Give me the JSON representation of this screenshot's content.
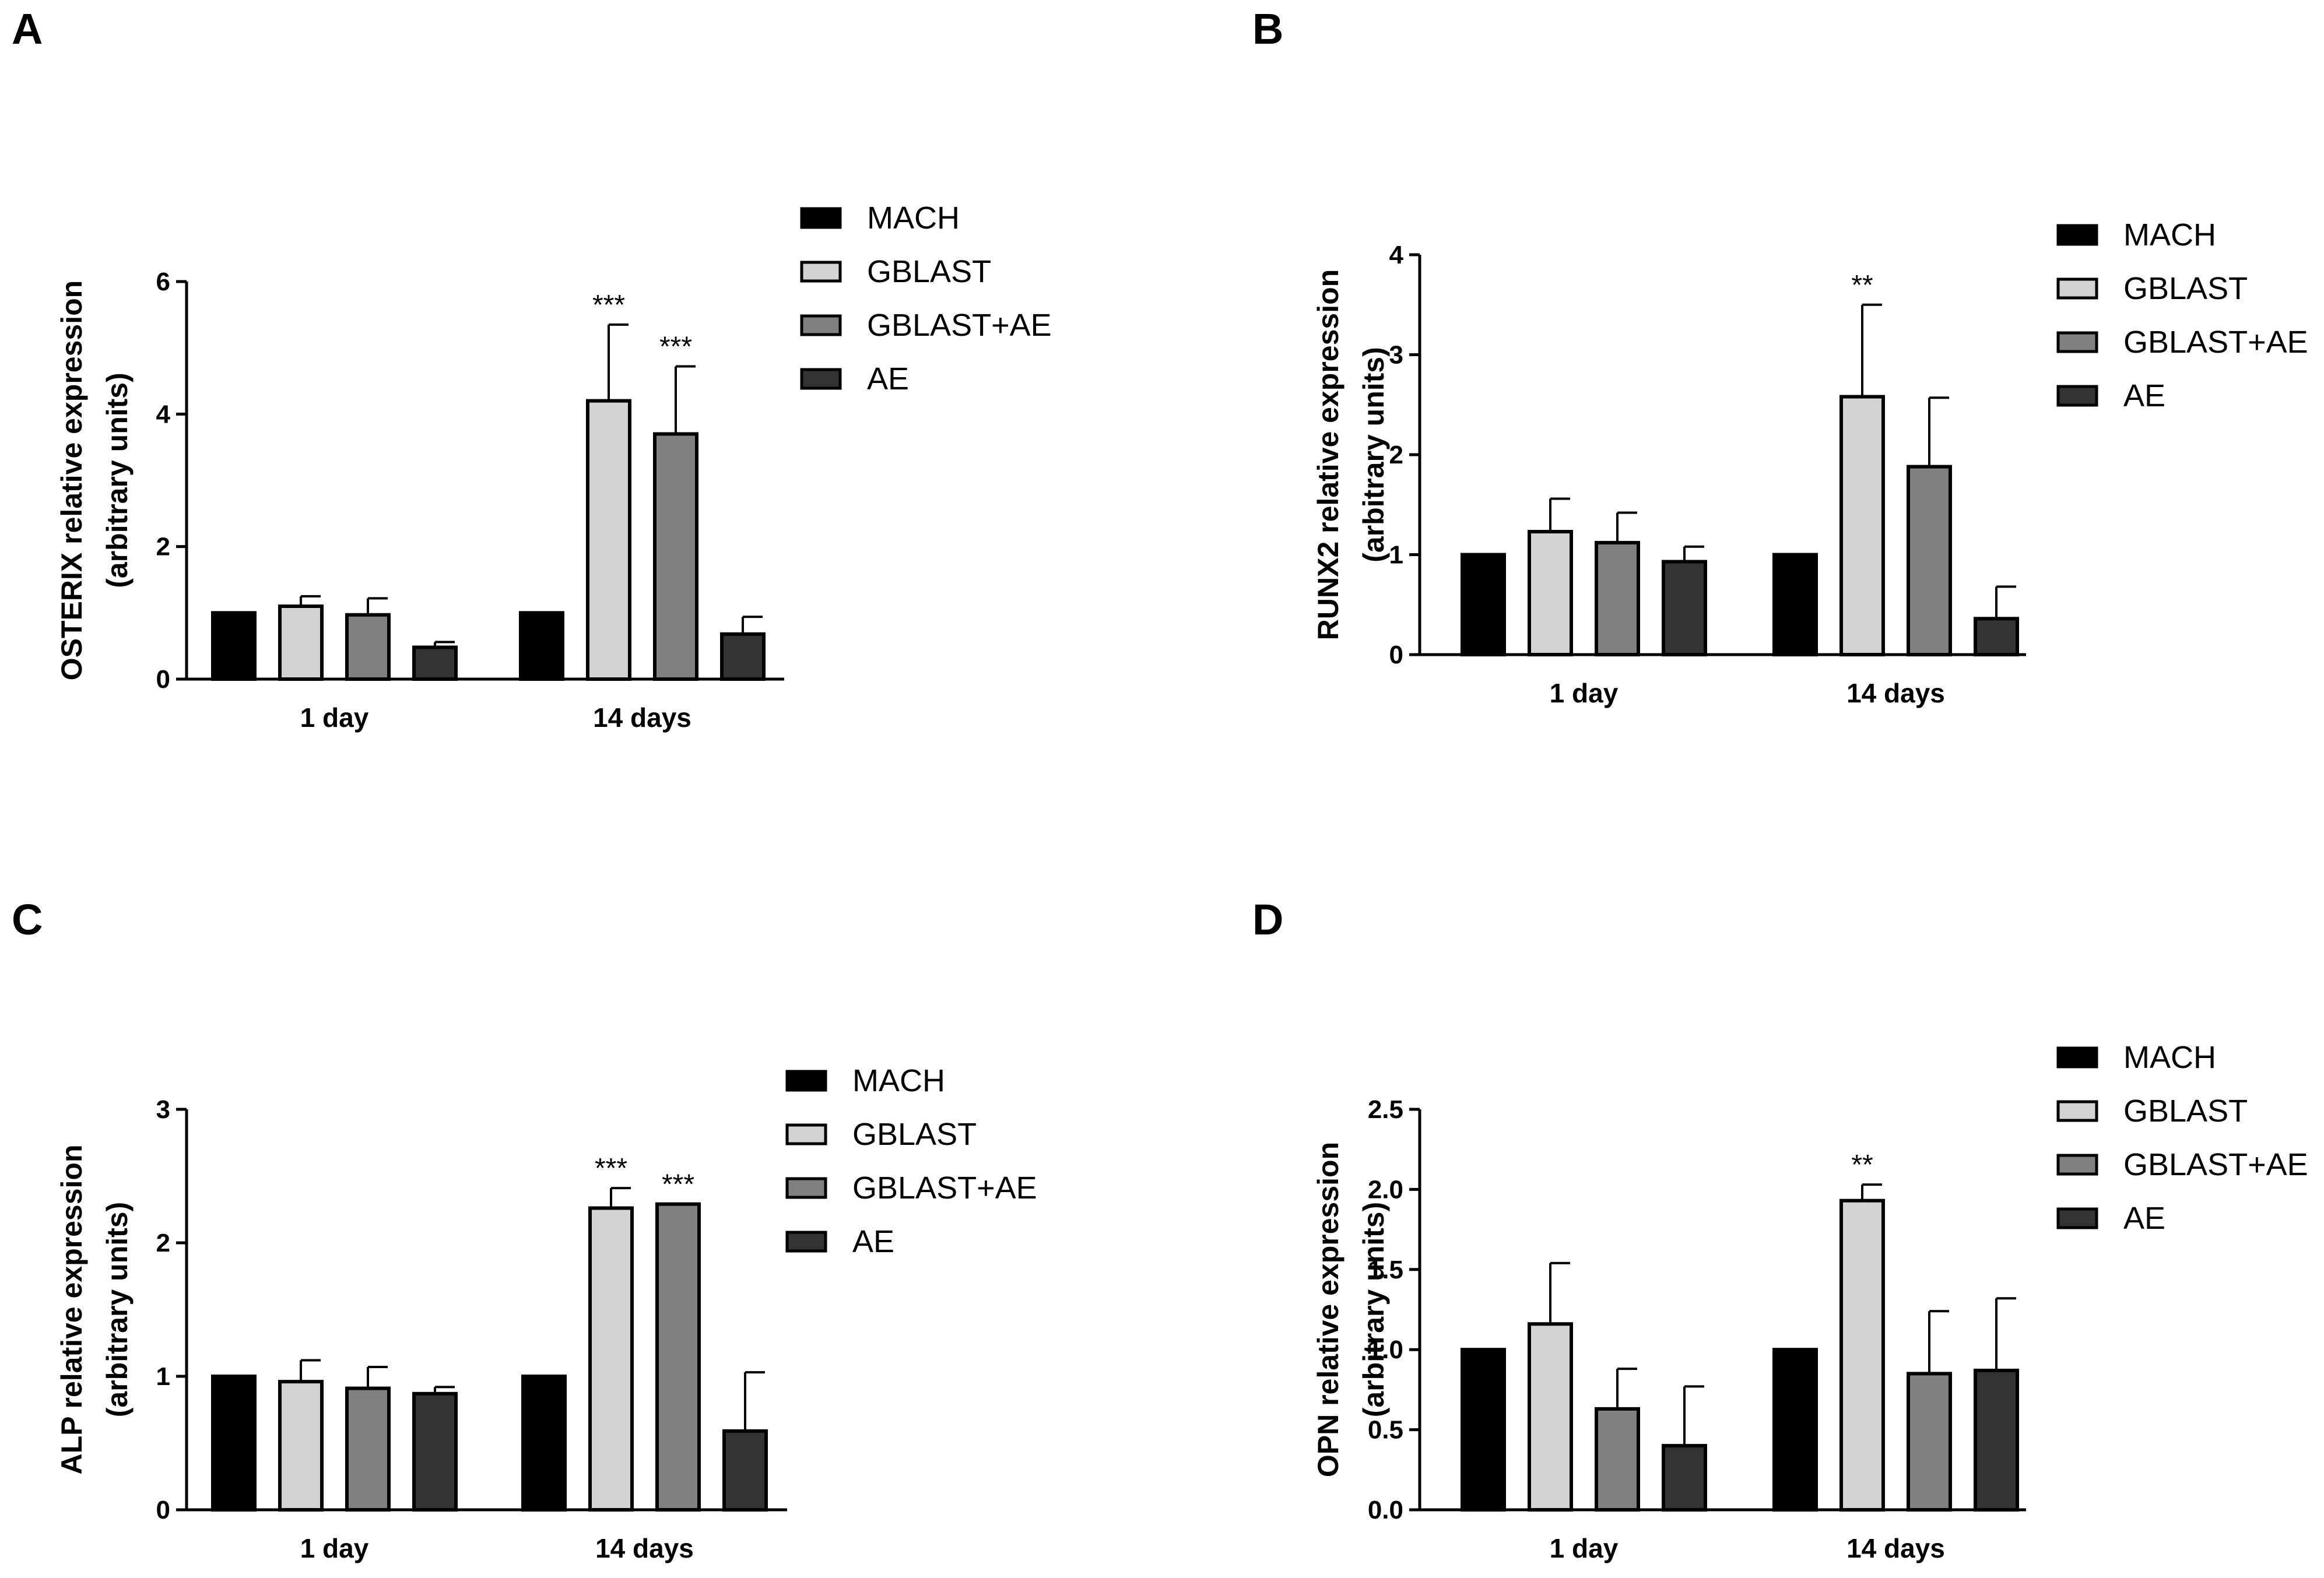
{
  "chart_data": [
    {
      "panel": "A",
      "type": "bar",
      "categories": [
        "1 day",
        "14 days"
      ],
      "ylabel_line1": "OSTERIX relative expression",
      "ylabel_line2": "(arbitrary units)",
      "ylim": [
        0,
        6
      ],
      "yticks": [
        "0",
        "2",
        "4",
        "6"
      ],
      "ytick_values": [
        0,
        2,
        4,
        6
      ],
      "series": [
        {
          "name": "MACH",
          "values": [
            1.0,
            1.0
          ],
          "errors": [
            0,
            0
          ],
          "color": "#000000"
        },
        {
          "name": "GBLAST",
          "values": [
            1.1,
            4.2
          ],
          "errors": [
            0.15,
            1.15
          ],
          "color": "#d3d3d3"
        },
        {
          "name": "GBLAST+AE",
          "values": [
            0.97,
            3.7
          ],
          "errors": [
            0.25,
            1.02
          ],
          "color": "#808080"
        },
        {
          "name": "AE",
          "values": [
            0.48,
            0.68
          ],
          "errors": [
            0.08,
            0.26
          ],
          "color": "#333333"
        }
      ],
      "annotations": [
        {
          "series": 1,
          "category": 1,
          "text": "***"
        },
        {
          "series": 2,
          "category": 1,
          "text": "***"
        }
      ]
    },
    {
      "panel": "B",
      "type": "bar",
      "categories": [
        "1 day",
        "14 days"
      ],
      "ylabel_line1": "RUNX2 relative expression",
      "ylabel_line2": "(arbitrary units)",
      "ylim": [
        0,
        4
      ],
      "yticks": [
        "0",
        "1",
        "2",
        "3",
        "4"
      ],
      "ytick_values": [
        0,
        1,
        2,
        3,
        4
      ],
      "series": [
        {
          "name": "MACH",
          "values": [
            1.0,
            1.0
          ],
          "errors": [
            0,
            0
          ],
          "color": "#000000"
        },
        {
          "name": "GBLAST",
          "values": [
            1.23,
            2.58
          ],
          "errors": [
            0.33,
            0.92
          ],
          "color": "#d3d3d3"
        },
        {
          "name": "GBLAST+AE",
          "values": [
            1.12,
            1.88
          ],
          "errors": [
            0.3,
            0.69
          ],
          "color": "#808080"
        },
        {
          "name": "AE",
          "values": [
            0.93,
            0.36
          ],
          "errors": [
            0.15,
            0.32
          ],
          "color": "#333333"
        }
      ],
      "annotations": [
        {
          "series": 1,
          "category": 1,
          "text": "**"
        }
      ]
    },
    {
      "panel": "C",
      "type": "bar",
      "categories": [
        "1 day",
        "14 days"
      ],
      "ylabel_line1": "ALP relative expression",
      "ylabel_line2": "(arbitrary units)",
      "ylim": [
        0,
        3
      ],
      "yticks": [
        "0",
        "1",
        "2",
        "3"
      ],
      "ytick_values": [
        0,
        1,
        2,
        3
      ],
      "series": [
        {
          "name": "MACH",
          "values": [
            1.0,
            1.0
          ],
          "errors": [
            0,
            0
          ],
          "color": "#000000"
        },
        {
          "name": "GBLAST",
          "values": [
            0.96,
            2.26
          ],
          "errors": [
            0.16,
            0.15
          ],
          "color": "#d3d3d3"
        },
        {
          "name": "GBLAST+AE",
          "values": [
            0.91,
            2.29
          ],
          "errors": [
            0.16,
            0.0
          ],
          "color": "#808080"
        },
        {
          "name": "AE",
          "values": [
            0.87,
            0.59
          ],
          "errors": [
            0.05,
            0.44
          ],
          "color": "#333333"
        }
      ],
      "annotations": [
        {
          "series": 1,
          "category": 1,
          "text": "***"
        },
        {
          "series": 2,
          "category": 1,
          "text": "***"
        }
      ]
    },
    {
      "panel": "D",
      "type": "bar",
      "categories": [
        "1 day",
        "14 days"
      ],
      "ylabel_line1": "OPN relative expression",
      "ylabel_line2": "(arbitrary units)",
      "ylim": [
        0,
        2.5
      ],
      "yticks": [
        "0.0",
        "0.5",
        "1.0",
        "1.5",
        "2.0",
        "2.5"
      ],
      "ytick_values": [
        0,
        0.5,
        1.0,
        1.5,
        2.0,
        2.5
      ],
      "series": [
        {
          "name": "MACH",
          "values": [
            1.0,
            1.0
          ],
          "errors": [
            0,
            0
          ],
          "color": "#000000"
        },
        {
          "name": "GBLAST",
          "values": [
            1.16,
            1.93
          ],
          "errors": [
            0.38,
            0.1
          ],
          "color": "#d3d3d3"
        },
        {
          "name": "GBLAST+AE",
          "values": [
            0.63,
            0.85
          ],
          "errors": [
            0.25,
            0.39
          ],
          "color": "#808080"
        },
        {
          "name": "AE",
          "values": [
            0.4,
            0.87
          ],
          "errors": [
            0.37,
            0.45
          ],
          "color": "#333333"
        }
      ],
      "annotations": [
        {
          "series": 1,
          "category": 1,
          "text": "**"
        }
      ]
    }
  ]
}
